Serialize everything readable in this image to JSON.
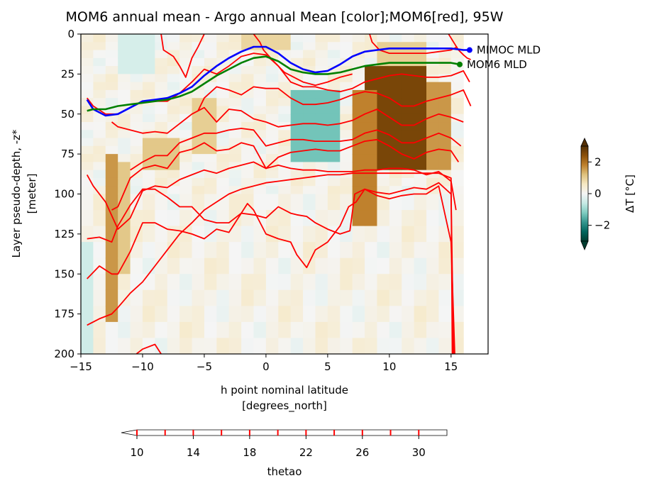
{
  "chart_data": {
    "type": "heatmap",
    "title": "MOM6 annual mean - Argo annual Mean [color];MOM6[red], 95W",
    "xlabel": "h point nominal latitude",
    "xlabel_units": "[degrees_north]",
    "ylabel": "Layer pseudo-depth, -z*",
    "ylabel_units": "[meter]",
    "xlim": [
      -15,
      18
    ],
    "ylim": [
      200,
      0
    ],
    "y_inverted": true,
    "xticks": [
      -15,
      -10,
      -5,
      0,
      5,
      10,
      15
    ],
    "xtick_labels": [
      "−15",
      "−10",
      "−5",
      "0",
      "5",
      "10",
      "15"
    ],
    "yticks": [
      0,
      25,
      50,
      75,
      100,
      125,
      150,
      175,
      200
    ],
    "colormap": "BrBG_r",
    "colorbar": {
      "label": "ΔT [°C]",
      "range": [
        -3,
        3
      ],
      "ticks": [
        -2,
        0,
        2
      ],
      "tick_labels": [
        "−2",
        "0",
        "2"
      ],
      "extend": "both"
    },
    "contour_colorbar": {
      "label": "thetao",
      "range": [
        10,
        32
      ],
      "ticks": [
        10,
        14,
        18,
        22,
        26,
        30
      ],
      "contour_levels": [
        10,
        12,
        14,
        16,
        18,
        20,
        22,
        24,
        26,
        28,
        30
      ],
      "line_color": "#ff0000",
      "extend": "min"
    },
    "lat_edges": [
      -15,
      -14,
      -13,
      -12,
      -11,
      -10,
      -9,
      -8,
      -7,
      -6,
      -5,
      -4,
      -3,
      -2,
      -1,
      0,
      1,
      2,
      3,
      4,
      5,
      6,
      7,
      8,
      9,
      10,
      11,
      12,
      13,
      14,
      15,
      16
    ],
    "depth_edges": [
      0,
      5,
      10,
      15,
      20,
      25,
      30,
      35,
      40,
      45,
      50,
      55,
      60,
      65,
      70,
      75,
      80,
      85,
      90,
      95,
      100,
      110,
      120,
      130,
      140,
      150,
      160,
      170,
      180,
      190,
      200
    ],
    "anomaly_features": [
      {
        "lat": [
          8,
          13
        ],
        "depth": [
          20,
          85
        ],
        "value": 2.6
      },
      {
        "lat": [
          7,
          8.5
        ],
        "depth": [
          35,
          120
        ],
        "value": 1.8
      },
      {
        "lat": [
          13,
          15
        ],
        "depth": [
          30,
          85
        ],
        "value": 1.6
      },
      {
        "lat": [
          9,
          13
        ],
        "depth": [
          5,
          20
        ],
        "value": 1.0
      },
      {
        "lat": [
          3,
          5
        ],
        "depth": [
          45,
          65
        ],
        "value": -2.6
      },
      {
        "lat": [
          2,
          6
        ],
        "depth": [
          35,
          80
        ],
        "value": -1.3
      },
      {
        "lat": [
          -13,
          -12
        ],
        "depth": [
          75,
          175
        ],
        "value": 1.6
      },
      {
        "lat": [
          -12,
          -11
        ],
        "depth": [
          80,
          150
        ],
        "value": 1.1
      },
      {
        "lat": [
          -10,
          -7
        ],
        "depth": [
          65,
          85
        ],
        "value": 1.1
      },
      {
        "lat": [
          -6,
          -4
        ],
        "depth": [
          40,
          75
        ],
        "value": 1.0
      },
      {
        "lat": [
          -2,
          2
        ],
        "depth": [
          0,
          10
        ],
        "value": 0.9
      },
      {
        "lat": [
          -15,
          -14
        ],
        "depth": [
          130,
          200
        ],
        "value": -0.5
      },
      {
        "lat": [
          -12,
          -9
        ],
        "depth": [
          0,
          25
        ],
        "value": -0.4
      }
    ],
    "contours": [
      {
        "level": 30,
        "lat": [
          -8.5,
          -8.3,
          -7.5,
          -7.0,
          -6.5,
          -6.0,
          -5.5,
          -5.0
        ],
        "depth": [
          0,
          10,
          14,
          20,
          27,
          15,
          8,
          0
        ]
      },
      {
        "level": 28,
        "lat": [
          -1.0,
          -0.5,
          -0.2,
          0.5,
          1.0,
          1.5,
          2.0,
          2.5,
          3.0,
          4.0,
          5.0,
          6.0,
          7.0
        ],
        "depth": [
          0,
          5,
          10,
          16,
          20,
          24,
          26,
          28,
          30,
          32,
          30,
          27,
          25
        ]
      },
      {
        "level": 28,
        "lat": [
          8.4,
          8.6,
          9.2,
          10.0,
          11.0,
          12.0,
          13.0,
          14.0,
          15.0,
          15.5
        ],
        "depth": [
          0,
          5,
          10,
          12,
          12,
          12,
          12,
          11,
          10,
          8
        ]
      },
      {
        "level": 28,
        "lat": [
          14.8,
          15.2,
          15.6,
          16.0,
          16.3,
          16.6
        ],
        "depth": [
          0,
          5,
          10,
          13,
          15,
          16
        ]
      },
      {
        "level": 26,
        "lat": [
          -14.5,
          -14,
          -13,
          -12,
          -11,
          -10,
          -9,
          -8,
          -7,
          -6,
          -5,
          -4,
          -3,
          -2,
          -1,
          0,
          1,
          2,
          3,
          4,
          5,
          6,
          7,
          8,
          9,
          10,
          11,
          12,
          13,
          14,
          15,
          16,
          16.5
        ],
        "depth": [
          40,
          45,
          50,
          50,
          46,
          42,
          42,
          42,
          37,
          30,
          22,
          25,
          20,
          14,
          12,
          13,
          20,
          30,
          33,
          33,
          35,
          36,
          34,
          30,
          28,
          26,
          25,
          26,
          27,
          27,
          26,
          23,
          30
        ]
      },
      {
        "level": 24,
        "lat": [
          -5.5,
          -5,
          -4,
          -3,
          -2,
          -1,
          0,
          1,
          2,
          3,
          4,
          5,
          6,
          7,
          8,
          9,
          10,
          11,
          12,
          13,
          14,
          15,
          16,
          16.6
        ],
        "depth": [
          48,
          40,
          33,
          35,
          38,
          33,
          34,
          34,
          40,
          44,
          44,
          43,
          41,
          38,
          36,
          37,
          40,
          45,
          45,
          42,
          40,
          38,
          35,
          45
        ]
      },
      {
        "level": 22,
        "lat": [
          -12.5,
          -12,
          -11,
          -10,
          -9,
          -8,
          -7,
          -6,
          -5,
          -4,
          -3,
          -2,
          -1,
          0,
          1,
          2,
          3,
          4,
          5,
          6,
          7,
          8,
          9,
          10,
          11,
          12,
          13,
          14,
          15,
          16
        ],
        "depth": [
          55,
          58,
          60,
          62,
          61,
          62,
          56,
          50,
          46,
          55,
          47,
          48,
          53,
          55,
          58,
          57,
          56,
          56,
          57,
          56,
          54,
          50,
          47,
          52,
          57,
          57,
          53,
          50,
          52,
          55
        ]
      },
      {
        "level": 20,
        "lat": [
          -11,
          -10,
          -9,
          -8,
          -7,
          -6,
          -5,
          -4,
          -3,
          -2,
          -1,
          0,
          1,
          2,
          3,
          4,
          5,
          6,
          7,
          8,
          9,
          10,
          11,
          12,
          13,
          14,
          15,
          15.8
        ],
        "depth": [
          85,
          80,
          76,
          76,
          68,
          65,
          62,
          62,
          60,
          59,
          60,
          70,
          68,
          66,
          66,
          67,
          67,
          67,
          66,
          62,
          60,
          63,
          68,
          68,
          65,
          62,
          65,
          70
        ]
      },
      {
        "level": 18,
        "lat": [
          -12.5,
          -12,
          -11,
          -10,
          -9,
          -8,
          -7,
          -6,
          -5,
          -4,
          -3,
          -2,
          -1,
          0,
          1,
          2,
          3,
          4,
          5,
          6,
          7,
          8,
          9,
          10,
          11,
          12,
          13,
          14,
          15,
          15.6
        ],
        "depth": [
          110,
          108,
          90,
          84,
          82,
          84,
          74,
          72,
          68,
          73,
          72,
          68,
          70,
          84,
          77,
          74,
          73,
          72,
          73,
          73,
          70,
          67,
          66,
          70,
          75,
          78,
          74,
          72,
          73,
          80
        ]
      },
      {
        "level": 16,
        "lat": [
          -14.5,
          -14,
          -13,
          -12,
          -11,
          -10,
          -9,
          -8,
          -7,
          -6,
          -5,
          -4,
          -3,
          -2,
          -1,
          0,
          1,
          2,
          3,
          4,
          5,
          6,
          7,
          8,
          9,
          10,
          11,
          12,
          13,
          14,
          15,
          15.4
        ],
        "depth": [
          88,
          95,
          105,
          122,
          115,
          98,
          95,
          96,
          91,
          88,
          85,
          87,
          84,
          82,
          80,
          84,
          82,
          84,
          85,
          85,
          86,
          86,
          86,
          85,
          85,
          84,
          84,
          85,
          88,
          86,
          92,
          110
        ]
      },
      {
        "level": 14,
        "lat": [
          -14.5,
          -13.5,
          -12.5,
          -12,
          -11,
          -10,
          -9,
          -8,
          -7,
          -6,
          -5,
          -4,
          -3,
          -2,
          -1,
          0,
          1,
          2,
          2.5,
          3.3,
          4,
          5,
          6,
          6.8,
          7.2,
          8,
          9,
          10,
          11,
          12,
          13,
          14,
          15,
          15.3
        ],
        "depth": [
          128,
          127,
          130,
          120,
          107,
          97,
          97,
          102,
          108,
          108,
          116,
          118,
          118,
          112,
          113,
          115,
          108,
          112,
          113,
          114,
          118,
          122,
          125,
          123,
          100,
          97,
          101,
          103,
          101,
          100,
          100,
          95,
          130,
          200
        ]
      },
      {
        "level": 12,
        "lat": [
          -14.5,
          -13.5,
          -12.5,
          -12,
          -11,
          -10,
          -9,
          -8,
          -7,
          -6,
          -5,
          -4,
          -3,
          -2,
          -1.5,
          -1,
          0,
          1,
          2,
          2.5,
          3.3,
          4,
          5,
          6,
          6.7,
          7.3,
          8,
          9,
          10,
          11,
          12,
          13,
          14,
          15,
          15.2
        ],
        "depth": [
          153,
          145,
          150,
          150,
          136,
          118,
          118,
          122,
          123,
          125,
          128,
          122,
          124,
          112,
          106,
          110,
          125,
          128,
          130,
          138,
          146,
          135,
          130,
          120,
          108,
          105,
          97,
          99,
          100,
          98,
          96,
          97,
          93,
          100,
          200
        ]
      },
      {
        "level": 10,
        "lat": [
          -14.5,
          -13.5,
          -12.5,
          -12,
          -11,
          -10,
          -9,
          -8,
          -7,
          -6,
          -5,
          -4,
          -3,
          -2,
          -1,
          0,
          1,
          2,
          3,
          4,
          5,
          6,
          7,
          8,
          9,
          10,
          11,
          12,
          13,
          14,
          15,
          15.1
        ],
        "depth": [
          182,
          178,
          175,
          171,
          162,
          155,
          145,
          135,
          125,
          118,
          110,
          105,
          100,
          97,
          95,
          93,
          92,
          91,
          90,
          89,
          88,
          88,
          87,
          87,
          87,
          87,
          87,
          87,
          87,
          87,
          90,
          200
        ]
      },
      {
        "level": 8,
        "lat": [
          -10.5,
          -10,
          -9,
          -8.5
        ],
        "depth": [
          200,
          197,
          194,
          200
        ]
      }
    ],
    "mld_series": [
      {
        "name": "MIMOC MLD",
        "color": "#0000ff",
        "lat": [
          -14.5,
          -14,
          -13,
          -12,
          -11,
          -10,
          -9,
          -8,
          -7,
          -6,
          -5,
          -4,
          -3,
          -2,
          -1,
          0,
          1,
          2,
          3,
          4,
          5,
          6,
          7,
          8,
          9,
          10,
          11,
          12,
          13,
          14,
          15,
          16,
          16.5
        ],
        "depth": [
          41,
          47,
          51,
          50,
          46,
          42,
          41,
          40,
          37,
          33,
          26,
          20,
          15,
          11,
          8,
          8,
          12,
          18,
          22,
          24,
          23,
          19,
          14,
          11,
          10,
          9,
          9,
          9,
          9,
          9,
          9,
          10,
          10
        ]
      },
      {
        "name": "MOM6 MLD",
        "color": "#008000",
        "lat": [
          -14.5,
          -14,
          -13,
          -12,
          -11,
          -10,
          -9,
          -8,
          -7,
          -6,
          -5,
          -4,
          -3,
          -2,
          -1,
          0,
          1,
          2,
          3,
          4,
          5,
          6,
          7,
          8,
          9,
          10,
          11,
          12,
          13,
          14,
          15,
          15.7
        ],
        "depth": [
          48,
          47,
          47,
          45,
          44,
          43,
          42,
          41,
          39,
          36,
          31,
          26,
          22,
          18,
          15,
          14,
          17,
          22,
          24,
          25,
          25,
          24,
          22,
          20,
          19,
          18,
          18,
          18,
          18,
          18,
          18,
          19
        ]
      }
    ]
  }
}
